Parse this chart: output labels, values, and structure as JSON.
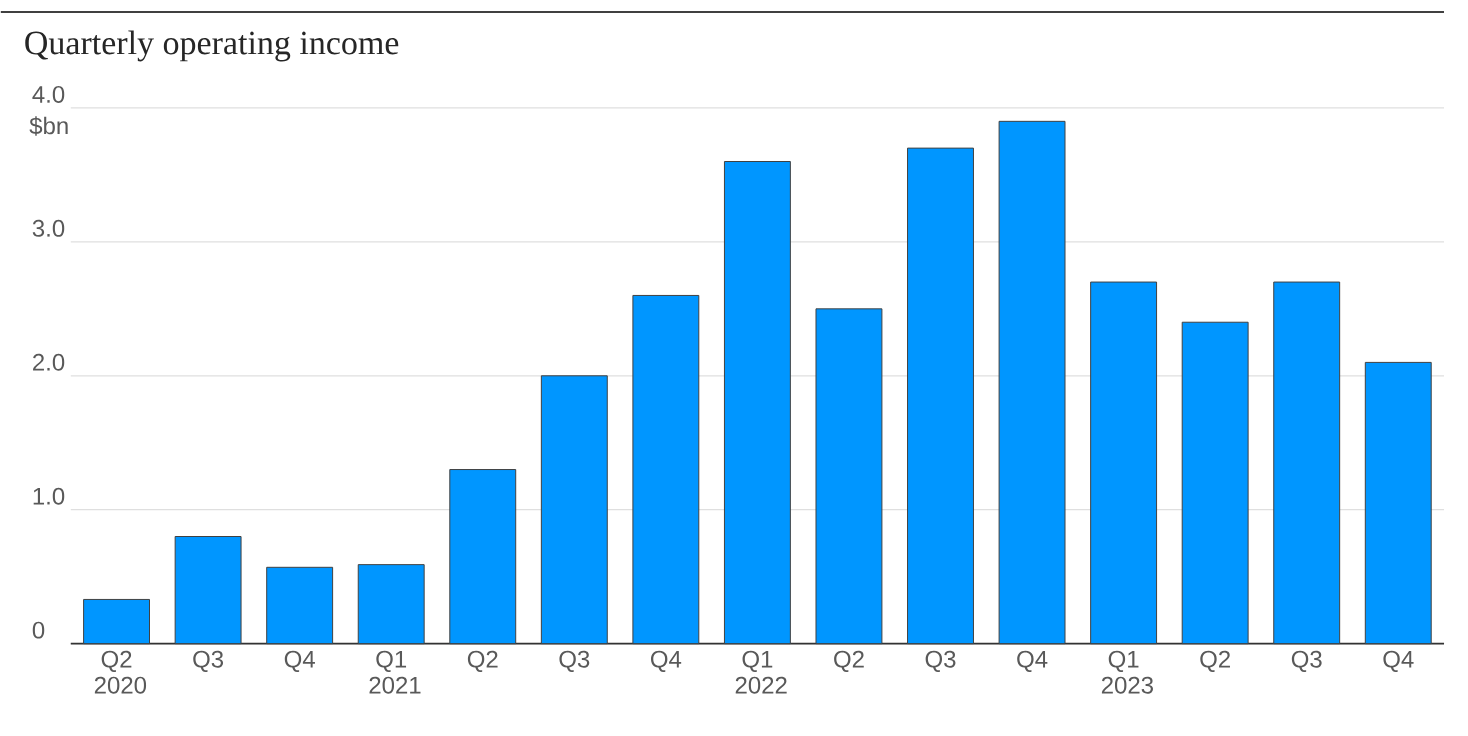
{
  "chart_data": {
    "type": "bar",
    "title": "Quarterly operating income",
    "ylabel": "$bn",
    "categories": [
      "Q2 2020",
      "Q3",
      "Q4",
      "Q1 2021",
      "Q2",
      "Q3",
      "Q4",
      "Q1 2022",
      "Q2",
      "Q3",
      "Q4",
      "Q1 2023",
      "Q2",
      "Q3",
      "Q4"
    ],
    "values": [
      0.33,
      0.8,
      0.57,
      0.59,
      1.3,
      2.0,
      2.6,
      3.6,
      2.5,
      3.7,
      3.9,
      2.7,
      2.4,
      2.7,
      2.1
    ],
    "color": "#0096ff",
    "ylim": [
      0,
      4.0
    ],
    "yticks": [
      0,
      {
        "value": 1,
        "label": "1.0"
      },
      {
        "value": 2,
        "label": "2.0"
      },
      {
        "value": 3,
        "label": "3.0"
      },
      {
        "value": 4,
        "label": "4.0"
      }
    ],
    "grid": "y"
  }
}
